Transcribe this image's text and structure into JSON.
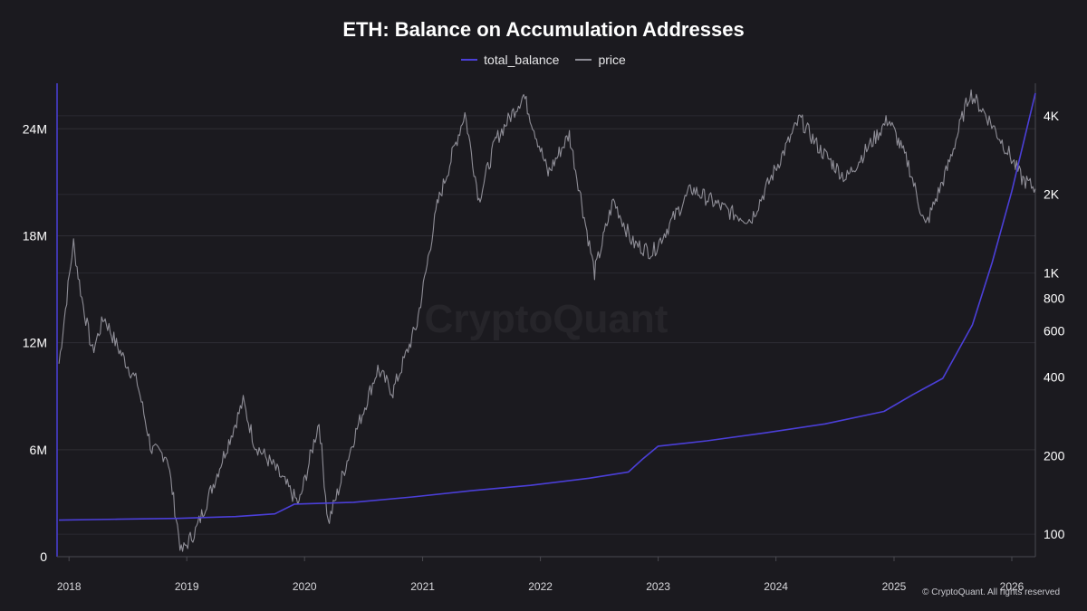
{
  "chart_data": {
    "type": "line",
    "title": "ETH: Balance on Accumulation Addresses",
    "legend_position": "top-center",
    "grid": true,
    "x_axis": {
      "ticks": [
        "2018",
        "2019",
        "2020",
        "2021",
        "2022",
        "2023",
        "2024",
        "2025",
        "2026"
      ],
      "range": [
        "2017-11-25",
        "2026-03-15"
      ]
    },
    "y_left": {
      "ticks": [
        "0",
        "6M",
        "12M",
        "18M",
        "24M"
      ],
      "tick_values": [
        0,
        6000000,
        12000000,
        18000000,
        24000000
      ],
      "range": [
        0,
        26400000
      ]
    },
    "y_right": {
      "scale": "log",
      "ticks": [
        "100",
        "200",
        "400",
        "600",
        "800",
        "1K",
        "2K",
        "4K"
      ],
      "tick_values": [
        100,
        200,
        400,
        600,
        800,
        1000,
        2000,
        4000
      ],
      "range": [
        82,
        5200
      ]
    },
    "series": [
      {
        "name": "total_balance",
        "axis": "left",
        "color": "#4b3fd8",
        "points": [
          [
            "2017-12-01",
            2050000
          ],
          [
            "2018-06-01",
            2100000
          ],
          [
            "2018-12-01",
            2150000
          ],
          [
            "2019-06-01",
            2250000
          ],
          [
            "2019-10-01",
            2400000
          ],
          [
            "2019-12-01",
            2950000
          ],
          [
            "2020-06-01",
            3050000
          ],
          [
            "2020-12-01",
            3350000
          ],
          [
            "2021-06-01",
            3700000
          ],
          [
            "2021-12-01",
            4000000
          ],
          [
            "2022-06-01",
            4400000
          ],
          [
            "2022-10-01",
            4750000
          ],
          [
            "2022-11-15",
            5500000
          ],
          [
            "2023-01-01",
            6200000
          ],
          [
            "2023-06-01",
            6500000
          ],
          [
            "2023-12-01",
            6950000
          ],
          [
            "2024-06-01",
            7450000
          ],
          [
            "2024-12-01",
            8150000
          ],
          [
            "2025-03-01",
            9100000
          ],
          [
            "2025-06-01",
            10000000
          ],
          [
            "2025-09-01",
            13000000
          ],
          [
            "2025-11-01",
            16500000
          ],
          [
            "2026-01-01",
            20500000
          ],
          [
            "2026-03-15",
            26000000
          ]
        ]
      },
      {
        "name": "price",
        "axis": "right",
        "color": "#8e8d96",
        "points": [
          [
            "2017-12-01",
            450
          ],
          [
            "2018-01-15",
            1300
          ],
          [
            "2018-02-10",
            800
          ],
          [
            "2018-03-15",
            500
          ],
          [
            "2018-04-20",
            680
          ],
          [
            "2018-06-01",
            520
          ],
          [
            "2018-08-01",
            380
          ],
          [
            "2018-09-15",
            210
          ],
          [
            "2018-11-01",
            200
          ],
          [
            "2018-12-15",
            85
          ],
          [
            "2019-02-01",
            105
          ],
          [
            "2019-04-01",
            165
          ],
          [
            "2019-06-25",
            320
          ],
          [
            "2019-08-01",
            220
          ],
          [
            "2019-10-01",
            180
          ],
          [
            "2019-12-15",
            130
          ],
          [
            "2020-02-15",
            270
          ],
          [
            "2020-03-15",
            110
          ],
          [
            "2020-06-01",
            230
          ],
          [
            "2020-08-15",
            430
          ],
          [
            "2020-10-01",
            350
          ],
          [
            "2020-12-15",
            640
          ],
          [
            "2021-02-15",
            1800
          ],
          [
            "2021-05-12",
            4100
          ],
          [
            "2021-06-25",
            1900
          ],
          [
            "2021-08-15",
            3200
          ],
          [
            "2021-11-10",
            4800
          ],
          [
            "2022-01-25",
            2400
          ],
          [
            "2022-04-01",
            3400
          ],
          [
            "2022-06-18",
            1000
          ],
          [
            "2022-08-15",
            1900
          ],
          [
            "2022-10-15",
            1300
          ],
          [
            "2022-12-15",
            1200
          ],
          [
            "2023-04-15",
            2100
          ],
          [
            "2023-08-15",
            1700
          ],
          [
            "2023-10-15",
            1600
          ],
          [
            "2024-03-15",
            3900
          ],
          [
            "2024-05-15",
            3000
          ],
          [
            "2024-08-05",
            2300
          ],
          [
            "2024-12-15",
            3900
          ],
          [
            "2025-02-15",
            2600
          ],
          [
            "2025-04-09",
            1500
          ],
          [
            "2025-06-15",
            2500
          ],
          [
            "2025-08-24",
            4900
          ],
          [
            "2025-10-15",
            4000
          ],
          [
            "2025-12-15",
            3000
          ],
          [
            "2026-02-01",
            2300
          ],
          [
            "2026-03-15",
            2100
          ]
        ]
      }
    ]
  },
  "watermark": "CryptoQuant",
  "copyright": "© CryptoQuant. All rights reserved"
}
